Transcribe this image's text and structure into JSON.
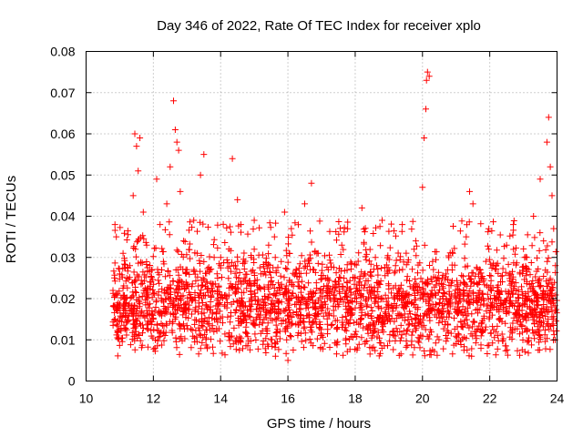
{
  "chart_data": {
    "type": "scatter",
    "title": "Day 346 of 2022, Rate Of TEC Index for receiver xplo",
    "xlabel": "GPS time / hours",
    "ylabel": "ROTI / TECUs",
    "xlim": [
      10,
      24
    ],
    "ylim": [
      0,
      0.08
    ],
    "x_ticks": [
      10,
      12,
      14,
      16,
      18,
      20,
      22,
      24
    ],
    "x_tick_labels": [
      "10",
      "12",
      "14",
      "16",
      "18",
      "20",
      "22",
      "24"
    ],
    "y_ticks": [
      0,
      0.01,
      0.02,
      0.03,
      0.04,
      0.05,
      0.06,
      0.07,
      0.08
    ],
    "y_tick_labels": [
      "0",
      "0.01",
      "0.02",
      "0.03",
      "0.04",
      "0.05",
      "0.06",
      "0.07",
      "0.08"
    ],
    "grid": true,
    "marker": "+",
    "color": "#ff0000",
    "series": [
      {
        "name": "ROTI",
        "points": [
          [
            10.8,
            0.022
          ],
          [
            10.85,
            0.018
          ],
          [
            10.9,
            0.035
          ],
          [
            10.95,
            0.012
          ],
          [
            11.0,
            0.026
          ],
          [
            11.1,
            0.031
          ],
          [
            11.2,
            0.019
          ],
          [
            11.3,
            0.028
          ],
          [
            11.4,
            0.045
          ],
          [
            11.45,
            0.06
          ],
          [
            11.5,
            0.057
          ],
          [
            11.55,
            0.051
          ],
          [
            11.6,
            0.059
          ],
          [
            11.7,
            0.041
          ],
          [
            11.8,
            0.033
          ],
          [
            11.9,
            0.024
          ],
          [
            12.0,
            0.015
          ],
          [
            12.05,
            0.008
          ],
          [
            12.1,
            0.049
          ],
          [
            12.2,
            0.038
          ],
          [
            12.3,
            0.029
          ],
          [
            12.4,
            0.043
          ],
          [
            12.5,
            0.052
          ],
          [
            12.6,
            0.068
          ],
          [
            12.65,
            0.061
          ],
          [
            12.7,
            0.058
          ],
          [
            12.75,
            0.056
          ],
          [
            12.8,
            0.046
          ],
          [
            12.9,
            0.034
          ],
          [
            13.0,
            0.027
          ],
          [
            13.1,
            0.021
          ],
          [
            13.2,
            0.039
          ],
          [
            13.3,
            0.031
          ],
          [
            13.4,
            0.05
          ],
          [
            13.5,
            0.055
          ],
          [
            13.6,
            0.024
          ],
          [
            13.7,
            0.018
          ],
          [
            13.8,
            0.012
          ],
          [
            13.9,
            0.022
          ],
          [
            14.0,
            0.028
          ],
          [
            14.2,
            0.019
          ],
          [
            14.35,
            0.054
          ],
          [
            14.5,
            0.044
          ],
          [
            14.6,
            0.038
          ],
          [
            14.7,
            0.025
          ],
          [
            14.8,
            0.016
          ],
          [
            15.0,
            0.032
          ],
          [
            15.2,
            0.026
          ],
          [
            15.4,
            0.02
          ],
          [
            15.6,
            0.035
          ],
          [
            15.8,
            0.029
          ],
          [
            15.9,
            0.041
          ],
          [
            16.0,
            0.005
          ],
          [
            16.1,
            0.037
          ],
          [
            16.3,
            0.024
          ],
          [
            16.5,
            0.043
          ],
          [
            16.7,
            0.048
          ],
          [
            16.9,
            0.031
          ],
          [
            17.0,
            0.018
          ],
          [
            17.2,
            0.027
          ],
          [
            17.4,
            0.022
          ],
          [
            17.6,
            0.033
          ],
          [
            17.8,
            0.014
          ],
          [
            18.0,
            0.025
          ],
          [
            18.2,
            0.042
          ],
          [
            18.4,
            0.02
          ],
          [
            18.6,
            0.03
          ],
          [
            18.8,
            0.039
          ],
          [
            19.0,
            0.016
          ],
          [
            19.2,
            0.028
          ],
          [
            19.4,
            0.038
          ],
          [
            19.6,
            0.021
          ],
          [
            19.8,
            0.034
          ],
          [
            20.0,
            0.047
          ],
          [
            20.05,
            0.059
          ],
          [
            20.1,
            0.066
          ],
          [
            20.12,
            0.073
          ],
          [
            20.15,
            0.075
          ],
          [
            20.2,
            0.074
          ],
          [
            20.3,
            0.029
          ],
          [
            20.5,
            0.019
          ],
          [
            20.7,
            0.026
          ],
          [
            20.9,
            0.031
          ],
          [
            21.1,
            0.022
          ],
          [
            21.3,
            0.035
          ],
          [
            21.4,
            0.046
          ],
          [
            21.5,
            0.043
          ],
          [
            21.7,
            0.024
          ],
          [
            21.9,
            0.017
          ],
          [
            22.1,
            0.028
          ],
          [
            22.3,
            0.021
          ],
          [
            22.5,
            0.033
          ],
          [
            22.7,
            0.038
          ],
          [
            22.9,
            0.026
          ],
          [
            23.1,
            0.03
          ],
          [
            23.3,
            0.04
          ],
          [
            23.5,
            0.049
          ],
          [
            23.6,
            0.034
          ],
          [
            23.7,
            0.058
          ],
          [
            23.75,
            0.064
          ],
          [
            23.8,
            0.052
          ],
          [
            23.85,
            0.045
          ],
          [
            23.9,
            0.037
          ],
          [
            23.95,
            0.028
          ]
        ],
        "dense_band": {
          "x_range": [
            10.8,
            24.0
          ],
          "y_typical_range": [
            0.006,
            0.035
          ],
          "y_center": 0.018,
          "approx_points": 2600
        }
      }
    ]
  }
}
